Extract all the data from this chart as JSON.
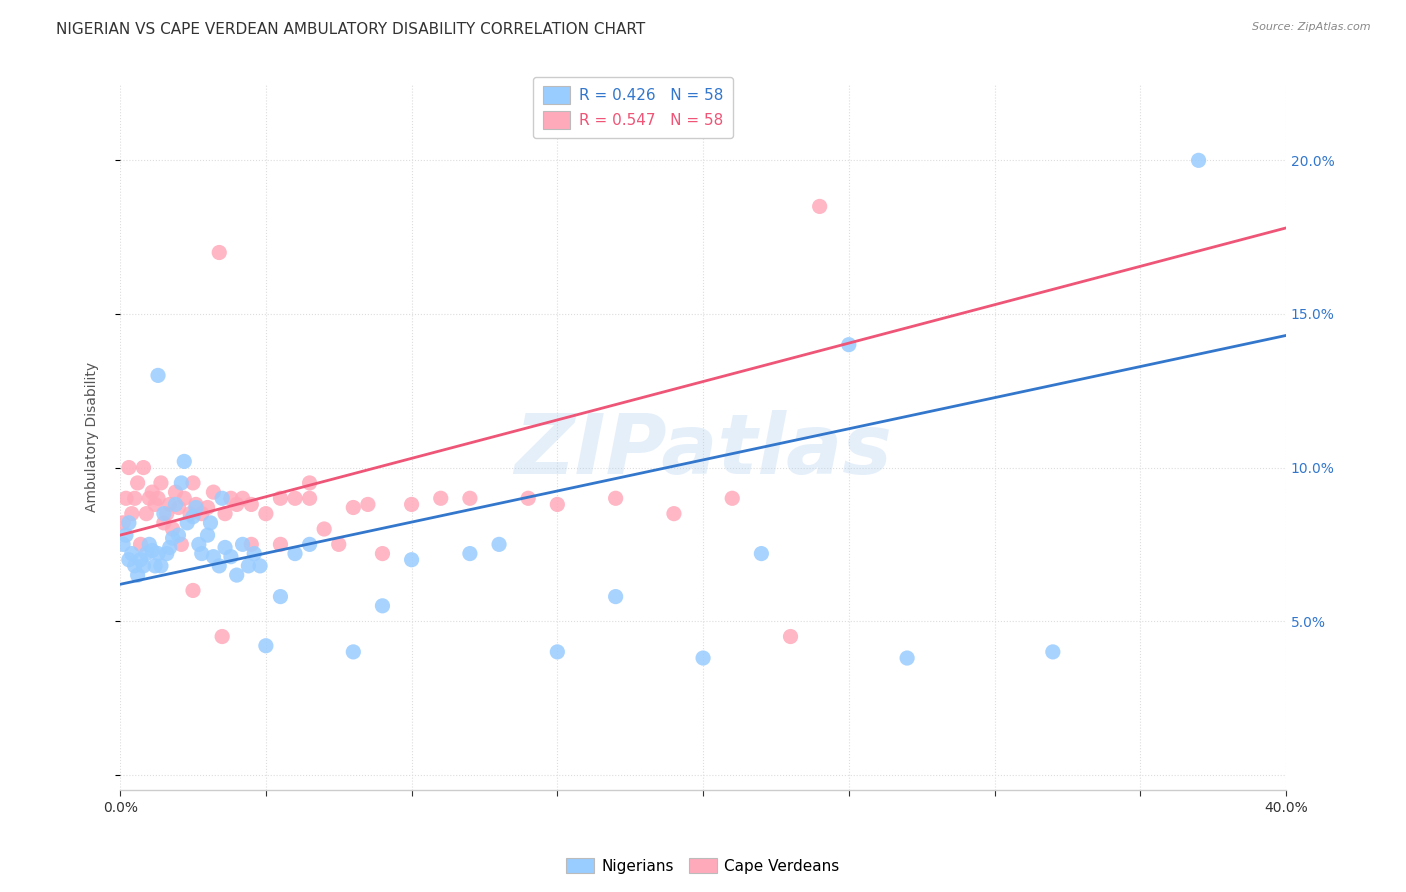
{
  "title": "NIGERIAN VS CAPE VERDEAN AMBULATORY DISABILITY CORRELATION CHART",
  "source": "Source: ZipAtlas.com",
  "ylabel": "Ambulatory Disability",
  "watermark": "ZIPatlas",
  "xlim": [
    0.0,
    0.4
  ],
  "ylim": [
    -0.005,
    0.225
  ],
  "x_ticks": [
    0.0,
    0.05,
    0.1,
    0.15,
    0.2,
    0.25,
    0.3,
    0.35,
    0.4
  ],
  "y_ticks_right": [
    0.05,
    0.1,
    0.15,
    0.2
  ],
  "legend_r_blue": "R = 0.426",
  "legend_n_blue": "N = 58",
  "legend_r_pink": "R = 0.547",
  "legend_n_pink": "N = 58",
  "nigerian_color": "#99ccff",
  "cape_verdean_color": "#ffaabb",
  "trend_blue": "#3377cc",
  "trend_pink": "#ee5577",
  "nigerian_x": [
    0.001,
    0.002,
    0.003,
    0.003,
    0.004,
    0.005,
    0.006,
    0.007,
    0.008,
    0.009,
    0.01,
    0.011,
    0.012,
    0.013,
    0.013,
    0.014,
    0.015,
    0.016,
    0.017,
    0.018,
    0.019,
    0.02,
    0.021,
    0.022,
    0.023,
    0.025,
    0.026,
    0.027,
    0.028,
    0.03,
    0.031,
    0.032,
    0.034,
    0.035,
    0.036,
    0.038,
    0.04,
    0.042,
    0.044,
    0.046,
    0.048,
    0.05,
    0.055,
    0.06,
    0.065,
    0.08,
    0.09,
    0.1,
    0.12,
    0.13,
    0.15,
    0.17,
    0.2,
    0.22,
    0.25,
    0.27,
    0.32,
    0.37
  ],
  "nigerian_y": [
    0.075,
    0.078,
    0.082,
    0.07,
    0.072,
    0.068,
    0.065,
    0.07,
    0.068,
    0.072,
    0.075,
    0.073,
    0.068,
    0.13,
    0.072,
    0.068,
    0.085,
    0.072,
    0.074,
    0.077,
    0.088,
    0.078,
    0.095,
    0.102,
    0.082,
    0.084,
    0.087,
    0.075,
    0.072,
    0.078,
    0.082,
    0.071,
    0.068,
    0.09,
    0.074,
    0.071,
    0.065,
    0.075,
    0.068,
    0.072,
    0.068,
    0.042,
    0.058,
    0.072,
    0.075,
    0.04,
    0.055,
    0.07,
    0.072,
    0.075,
    0.04,
    0.058,
    0.038,
    0.072,
    0.14,
    0.038,
    0.04,
    0.2
  ],
  "cape_verdean_x": [
    0.001,
    0.002,
    0.003,
    0.004,
    0.005,
    0.006,
    0.007,
    0.008,
    0.009,
    0.01,
    0.011,
    0.012,
    0.013,
    0.014,
    0.015,
    0.016,
    0.017,
    0.018,
    0.019,
    0.02,
    0.021,
    0.022,
    0.024,
    0.025,
    0.026,
    0.028,
    0.03,
    0.032,
    0.034,
    0.036,
    0.038,
    0.04,
    0.042,
    0.045,
    0.05,
    0.055,
    0.06,
    0.065,
    0.07,
    0.08,
    0.09,
    0.1,
    0.11,
    0.12,
    0.14,
    0.15,
    0.17,
    0.19,
    0.21,
    0.23,
    0.025,
    0.035,
    0.045,
    0.055,
    0.065,
    0.075,
    0.085,
    0.24
  ],
  "cape_verdean_y": [
    0.082,
    0.09,
    0.1,
    0.085,
    0.09,
    0.095,
    0.075,
    0.1,
    0.085,
    0.09,
    0.092,
    0.088,
    0.09,
    0.095,
    0.082,
    0.085,
    0.088,
    0.08,
    0.092,
    0.087,
    0.075,
    0.09,
    0.085,
    0.095,
    0.088,
    0.085,
    0.087,
    0.092,
    0.17,
    0.085,
    0.09,
    0.088,
    0.09,
    0.088,
    0.085,
    0.09,
    0.09,
    0.095,
    0.08,
    0.087,
    0.072,
    0.088,
    0.09,
    0.09,
    0.09,
    0.088,
    0.09,
    0.085,
    0.09,
    0.045,
    0.06,
    0.045,
    0.075,
    0.075,
    0.09,
    0.075,
    0.088,
    0.185
  ],
  "nigerian_trend_x": [
    0.0,
    0.4
  ],
  "nigerian_trend_y": [
    0.062,
    0.143
  ],
  "cape_verdean_trend_x": [
    0.0,
    0.4
  ],
  "cape_verdean_trend_y": [
    0.078,
    0.178
  ],
  "background_color": "#ffffff",
  "grid_color": "#dddddd",
  "title_fontsize": 11,
  "axis_label_fontsize": 10,
  "tick_fontsize": 9,
  "legend_fontsize": 11,
  "watermark_color": "#aaccee",
  "watermark_alpha": 0.3,
  "watermark_fontsize": 60
}
